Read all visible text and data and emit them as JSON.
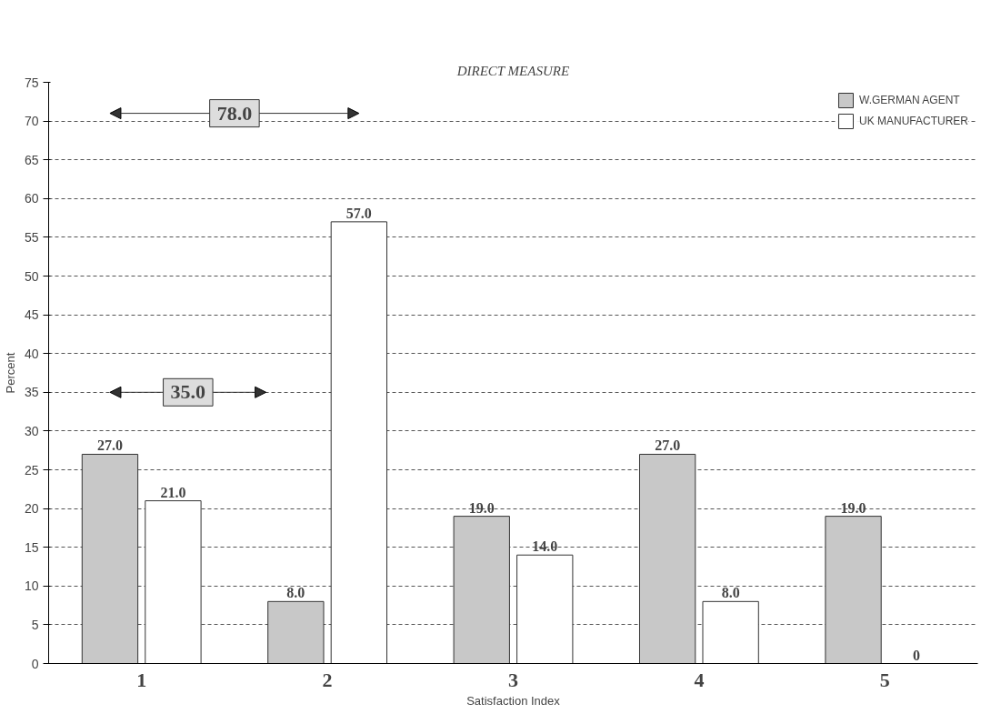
{
  "chart_data": {
    "type": "bar",
    "title": "DIRECT MEASURE",
    "xlabel": "Satisfaction Index",
    "ylabel": "Percent",
    "categories": [
      "1",
      "2",
      "3",
      "4",
      "5"
    ],
    "series": [
      {
        "name": "W.GERMAN AGENT",
        "color": "#c8c8c8",
        "values": [
          27,
          8,
          19,
          27,
          19
        ],
        "value_labels": [
          "27.0",
          "8.0",
          "19.0",
          "27.0",
          "19.0"
        ]
      },
      {
        "name": "UK MANUFACTURER",
        "color": "#ffffff",
        "values": [
          21,
          57,
          14,
          8,
          0
        ],
        "value_labels": [
          "21.0",
          "57.0",
          "14.0",
          "8.0",
          "0"
        ]
      }
    ],
    "annotations": [
      "78.0",
      "35.0"
    ],
    "ylim": [
      0,
      75
    ],
    "yticks": [
      0,
      5,
      10,
      15,
      20,
      25,
      30,
      35,
      40,
      45,
      50,
      55,
      60,
      65,
      70,
      75
    ],
    "grid": "y",
    "legend": "top right"
  }
}
